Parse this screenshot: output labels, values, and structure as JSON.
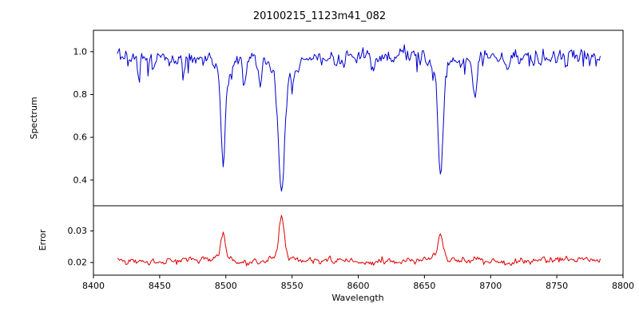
{
  "figure": {
    "background": "#ffffff",
    "frame_color": "#000000"
  },
  "chart_data": {
    "type": "line",
    "title": "20100215_1123m41_082",
    "xlabel": "Wavelength",
    "x_range": [
      8400,
      8800
    ],
    "x_ticks": [
      8400,
      8450,
      8500,
      8550,
      8600,
      8650,
      8700,
      8750,
      8800
    ],
    "x_tick_labels": [
      "8400",
      "8450",
      "8500",
      "8550",
      "8600",
      "8650",
      "8700",
      "8750",
      "8800"
    ],
    "data_x_start": 8418,
    "data_x_end": 8783,
    "sample_step": 0.8,
    "grid": false,
    "legend": "none",
    "panels": [
      {
        "name": "spectrum",
        "ylabel": "Spectrum",
        "y_range": [
          0.28,
          1.1
        ],
        "y_ticks": [
          0.4,
          0.6,
          0.8,
          1.0
        ],
        "y_tick_labels": [
          "0.4",
          "0.6",
          "0.8",
          "1.0"
        ],
        "line_color": "#0000cc",
        "continuum": 0.975,
        "noise_sigma": 0.028,
        "smoothing": 0.45,
        "spike_prob": 0.045,
        "spike_depth": 0.07,
        "undulation": {
          "amp": 0.008,
          "period": 120,
          "phase": 1.0
        },
        "seed": 20100215,
        "absorption_lines": [
          {
            "center": 8498.0,
            "min": 0.5,
            "sigma": 1.6,
            "wing": 0.12
          },
          {
            "center": 8542.1,
            "min": 0.32,
            "sigma": 2.2,
            "wing": 0.16
          },
          {
            "center": 8662.1,
            "min": 0.42,
            "sigma": 1.8,
            "wing": 0.13
          },
          {
            "center": 8434.0,
            "min": 0.87,
            "sigma": 1.0
          },
          {
            "center": 8468.0,
            "min": 0.9,
            "sigma": 1.0
          },
          {
            "center": 8514.0,
            "min": 0.84,
            "sigma": 1.1
          },
          {
            "center": 8526.0,
            "min": 0.87,
            "sigma": 1.0
          },
          {
            "center": 8583.0,
            "min": 0.92,
            "sigma": 1.0
          },
          {
            "center": 8611.0,
            "min": 0.93,
            "sigma": 1.0
          },
          {
            "center": 8688.0,
            "min": 0.78,
            "sigma": 1.3
          },
          {
            "center": 8713.0,
            "min": 0.92,
            "sigma": 1.0
          },
          {
            "center": 8757.0,
            "min": 0.93,
            "sigma": 1.0
          }
        ]
      },
      {
        "name": "error",
        "ylabel": "Error",
        "y_range": [
          0.016,
          0.038
        ],
        "y_ticks": [
          0.02,
          0.03
        ],
        "y_tick_labels": [
          "0.02",
          "0.03"
        ],
        "line_color": "#dd0000",
        "baseline": 0.0205,
        "noise_sigma": 0.001,
        "smoothing": 0.5,
        "undulation": {
          "amp": 0.0003,
          "period": 90,
          "phase": 2.2
        },
        "seed": 1123,
        "peaks": [
          {
            "center": 8498.0,
            "max": 0.029,
            "sigma": 1.5
          },
          {
            "center": 8542.1,
            "max": 0.035,
            "sigma": 1.8
          },
          {
            "center": 8662.1,
            "max": 0.0293,
            "sigma": 1.6
          },
          {
            "center": 8688.0,
            "max": 0.0215,
            "sigma": 1.2
          }
        ]
      }
    ]
  }
}
